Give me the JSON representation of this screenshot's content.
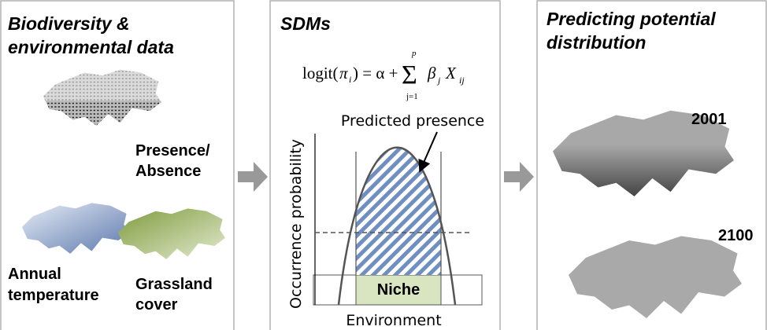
{
  "panels": [
    {
      "title_lines": [
        "Biodiversity &",
        "environmental data"
      ],
      "labels": [
        [
          "Presence/",
          "Absence"
        ],
        [
          "Annual",
          "temperature"
        ],
        [
          "Grassland",
          "cover"
        ]
      ]
    },
    {
      "title": "SDMs",
      "formula": {
        "lhs": "logit(",
        "pi": "π",
        "pi_sub": "i",
        "mid": ") = α + ",
        "sum": "Σ",
        "sum_lower": "j=1",
        "sum_upper": "p",
        "beta": "β",
        "beta_sub": "j",
        "x": "X",
        "x_sub": "ij"
      },
      "plot": {
        "y_label": "Occurrence probability",
        "x_label": "Environment",
        "curve_label": "Predicted presence",
        "band_label": "Niche"
      }
    },
    {
      "title_lines": [
        "Predicting potential",
        "distribution"
      ],
      "years": [
        "2001",
        "2100"
      ]
    }
  ]
}
